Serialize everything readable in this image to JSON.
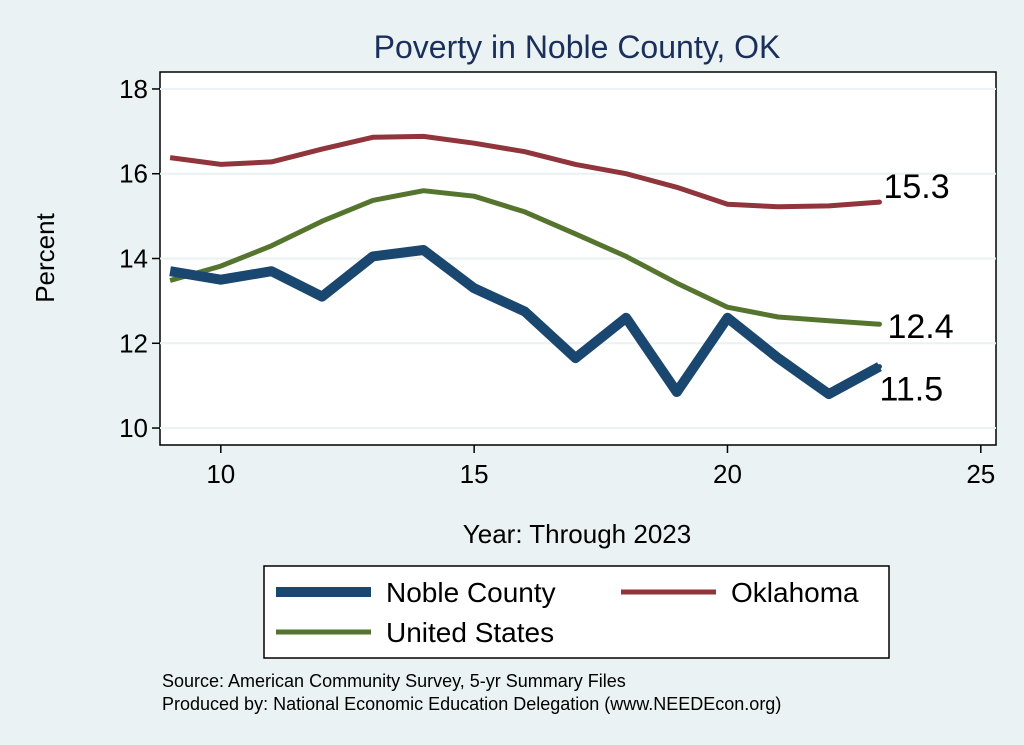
{
  "chart_data": {
    "type": "line",
    "title": "Poverty in Noble County, OK",
    "xlabel": "Year: Through 2023",
    "ylabel": "Percent",
    "xlim": [
      8.8,
      25.3
    ],
    "ylim": [
      9.6,
      18.4
    ],
    "xticks": [
      10,
      15,
      20,
      25
    ],
    "yticks": [
      10,
      12,
      14,
      16,
      18
    ],
    "grid": true,
    "legend_position": "bottom",
    "series": [
      {
        "name": "Noble County",
        "color": "#1a476f",
        "x": [
          9,
          10,
          11,
          12,
          13,
          14,
          15,
          16,
          17,
          18,
          19,
          20,
          21,
          22,
          23
        ],
        "y": [
          13.7,
          13.5,
          13.7,
          13.1,
          14.05,
          14.2,
          13.3,
          12.75,
          11.65,
          12.6,
          10.85,
          12.6,
          11.65,
          10.8,
          11.45
        ],
        "end_label": "11.5"
      },
      {
        "name": "Oklahoma",
        "color": "#90353b",
        "x": [
          9,
          10,
          11,
          12,
          13,
          14,
          15,
          16,
          17,
          18,
          19,
          20,
          21,
          22,
          23
        ],
        "y": [
          16.38,
          16.22,
          16.28,
          16.58,
          16.86,
          16.88,
          16.72,
          16.52,
          16.22,
          16.0,
          15.68,
          15.28,
          15.22,
          15.24,
          15.33
        ],
        "end_label": "15.3"
      },
      {
        "name": "United States",
        "color": "#55752f",
        "x": [
          9,
          10,
          11,
          12,
          13,
          14,
          15,
          16,
          17,
          18,
          19,
          20,
          21,
          22,
          23
        ],
        "y": [
          13.48,
          13.82,
          14.3,
          14.88,
          15.37,
          15.6,
          15.47,
          15.1,
          14.58,
          14.05,
          13.42,
          12.85,
          12.62,
          12.53,
          12.45
        ],
        "end_label": "12.4"
      }
    ],
    "legend": [
      "Noble County",
      "Oklahoma",
      "United States"
    ],
    "notes": [
      "Source: American Community Survey, 5-yr Summary Files",
      "Produced by: National Economic Education Delegation (www.NEEDEcon.org)"
    ]
  }
}
